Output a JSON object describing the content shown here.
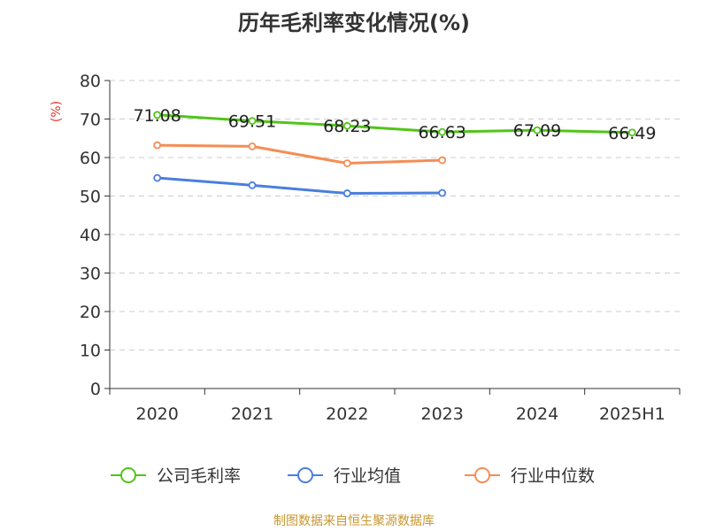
{
  "chart_data": {
    "type": "line",
    "title": "历年毛利率变化情况(%)",
    "ylabel": "(%)",
    "categories": [
      "2020",
      "2021",
      "2022",
      "2023",
      "2024",
      "2025H1"
    ],
    "ylim": [
      0,
      80
    ],
    "yticks": [
      "0",
      "10",
      "20",
      "30",
      "40",
      "50",
      "60",
      "70",
      "80"
    ],
    "grid": true,
    "legend_position": "bottom",
    "series": [
      {
        "name": "公司毛利率",
        "color": "#52c41a",
        "values": [
          71.08,
          69.51,
          68.23,
          66.63,
          67.09,
          66.49
        ],
        "labels": [
          "71.08",
          "69.51",
          "68.23",
          "66.63",
          "67.09",
          "66.49"
        ]
      },
      {
        "name": "行业均值",
        "color": "#4a7fdc",
        "values": [
          54.7,
          52.8,
          50.7,
          50.8,
          null,
          null
        ]
      },
      {
        "name": "行业中位数",
        "color": "#f58d55",
        "values": [
          63.2,
          62.9,
          58.5,
          59.3,
          null,
          null
        ]
      }
    ]
  },
  "source": "制图数据来自恒生聚源数据库"
}
